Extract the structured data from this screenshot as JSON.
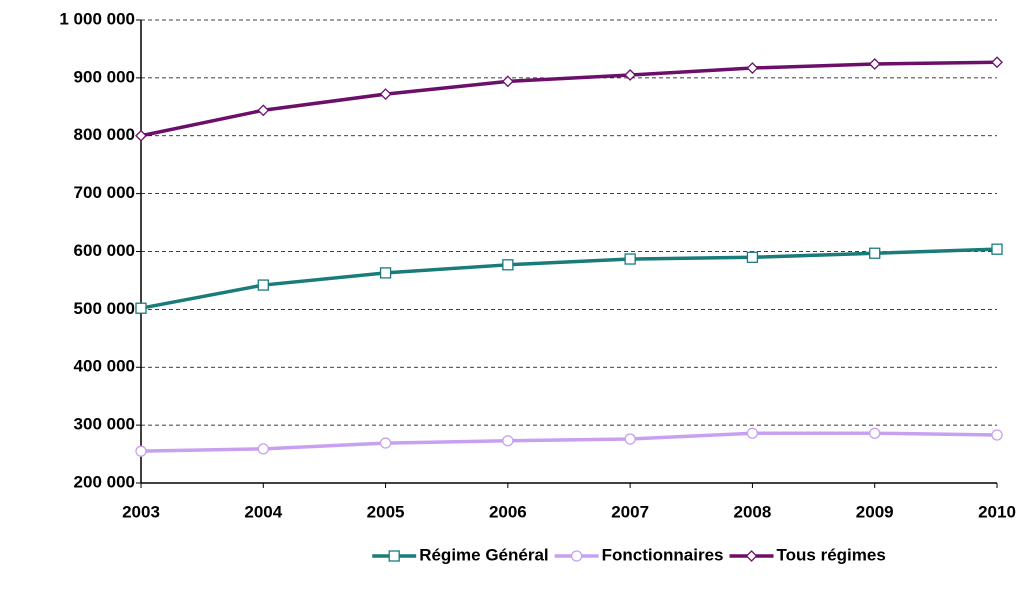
{
  "chart_data": {
    "type": "line",
    "categories": [
      "2003",
      "2004",
      "2005",
      "2006",
      "2007",
      "2008",
      "2009",
      "2010"
    ],
    "series": [
      {
        "name": "Régime Général",
        "color": "#1a7b7b",
        "marker": "square",
        "values": [
          502000,
          542000,
          563000,
          577000,
          587000,
          590000,
          597000,
          604000
        ]
      },
      {
        "name": "Fonctionnaires",
        "color": "#c8a0f0",
        "marker": "circle",
        "values": [
          255000,
          259000,
          269000,
          273000,
          276000,
          286000,
          286000,
          283000
        ]
      },
      {
        "name": "Tous régimes",
        "color": "#6b0f6b",
        "marker": "diamond",
        "values": [
          800000,
          844000,
          872000,
          894000,
          905000,
          917000,
          924000,
          927000
        ]
      }
    ],
    "ylim": [
      200000,
      1000000
    ],
    "yticks": [
      {
        "value": 200000,
        "label": "200 000"
      },
      {
        "value": 300000,
        "label": "300 000"
      },
      {
        "value": 400000,
        "label": "400 000"
      },
      {
        "value": 500000,
        "label": "500 000"
      },
      {
        "value": 600000,
        "label": "600 000"
      },
      {
        "value": 700000,
        "label": "700 000"
      },
      {
        "value": 800000,
        "label": "800 000"
      },
      {
        "value": 900000,
        "label": "900 000"
      },
      {
        "value": 1000000,
        "label": "1 000 000"
      }
    ],
    "grid": true,
    "legend": "bottom"
  }
}
